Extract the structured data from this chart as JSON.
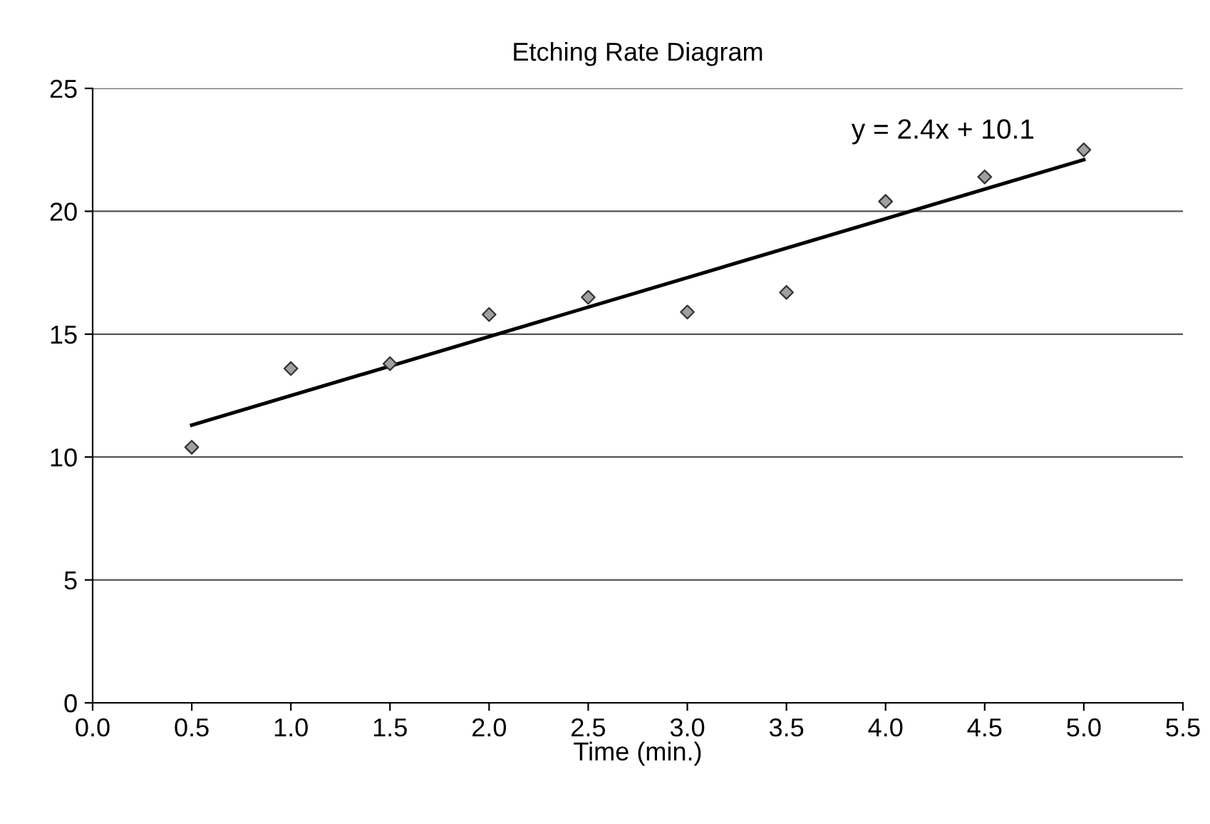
{
  "chart_data": {
    "type": "scatter",
    "title": "Etching Rate Diagram",
    "xlabel": "Time (min.)",
    "x": [
      0.5,
      1.0,
      1.5,
      2.0,
      2.5,
      3.0,
      3.5,
      4.0,
      4.5,
      5.0
    ],
    "series": [
      {
        "color": "#a0a0a0",
        "marker": "diamond",
        "values": [
          10.4,
          13.6,
          13.8,
          15.8,
          16.5,
          15.9,
          16.7,
          20.4,
          21.4,
          22.5
        ]
      },
      {
        "type": "line",
        "color": "#000000",
        "marker": "none",
        "x": [
          0.5,
          5.0
        ],
        "values": [
          11.3,
          22.1
        ]
      }
    ],
    "annotations": [
      "y = 2.4x + 10.1"
    ],
    "xlim": [
      0,
      5.5
    ],
    "xticks": [
      {
        "value": 0,
        "label": "0.0"
      },
      {
        "value": 0.5,
        "label": "0.5"
      },
      {
        "value": 1,
        "label": "1.0"
      },
      {
        "value": 1.5,
        "label": "1.5"
      },
      {
        "value": 2,
        "label": "2.0"
      },
      {
        "value": 2.5,
        "label": "2.5"
      },
      {
        "value": 3,
        "label": "3.0"
      },
      {
        "value": 3.5,
        "label": "3.5"
      },
      {
        "value": 4,
        "label": "4.0"
      },
      {
        "value": 4.5,
        "label": "4.5"
      },
      {
        "value": 5,
        "label": "5.0"
      },
      {
        "value": 5.5,
        "label": "5.5"
      }
    ],
    "ylim": [
      0,
      25
    ],
    "yticks": [
      0,
      5,
      10,
      15,
      20,
      25
    ],
    "grid": "y",
    "legend": false
  }
}
